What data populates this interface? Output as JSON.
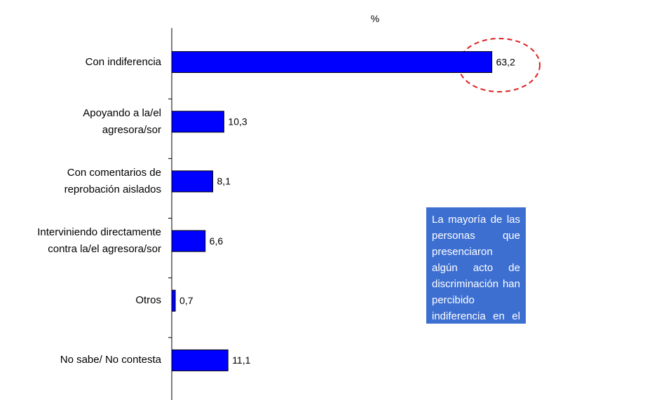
{
  "chart_data": {
    "type": "hbar",
    "axis_label": "%",
    "categories": [
      "Con indiferencia",
      "Apoyando a la/el\nagresora/sor",
      "Con comentarios de\nreprobación aislados",
      "Interviniendo directamente\ncontra la/el agresora/sor",
      "Otros",
      "No sabe/ No contesta"
    ],
    "values": [
      63.2,
      10.3,
      8.1,
      6.6,
      0.7,
      11.1
    ],
    "value_labels": [
      "63,2",
      "10,3",
      "8,1",
      "6,6",
      "0,7",
      "11,1"
    ],
    "color": "#0000ff",
    "xlim": [
      0,
      80
    ],
    "annotation": "La mayoría de las personas que presenciaron algún acto de discriminación han percibido indiferencia en el entorno al respecto."
  }
}
